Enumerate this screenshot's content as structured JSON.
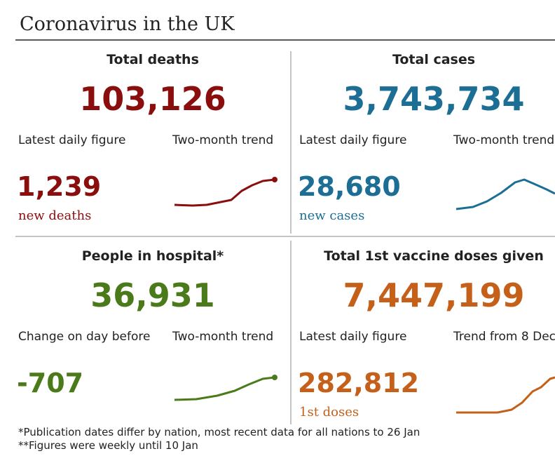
{
  "title": "Coronavirus in the UK",
  "panels": [
    {
      "heading": "Total deaths",
      "total": "103,126",
      "left_label": "Latest daily figure",
      "right_label": "Two-month trend",
      "figure": "1,239",
      "figure_unit": "new deaths"
    },
    {
      "heading": "Total cases",
      "total": "3,743,734",
      "left_label": "Latest daily figure",
      "right_label": "Two-month trend",
      "figure": "28,680",
      "figure_unit": "new cases"
    },
    {
      "heading": "People in hospital*",
      "total": "36,931",
      "left_label": "Change on day before",
      "right_label": "Two-month trend",
      "figure": "-707"
    },
    {
      "heading": "Total 1st vaccine doses given",
      "total": "7,447,199",
      "left_label": "Latest daily figure",
      "right_label": "Trend from 8 Dec",
      "figure": "282,812",
      "figure_unit": "1st doses"
    }
  ],
  "footnotes": [
    "*Publication dates differ by nation, most recent data for all nations to 26 Jan",
    "**Figures were weekly until 10 Jan"
  ]
}
